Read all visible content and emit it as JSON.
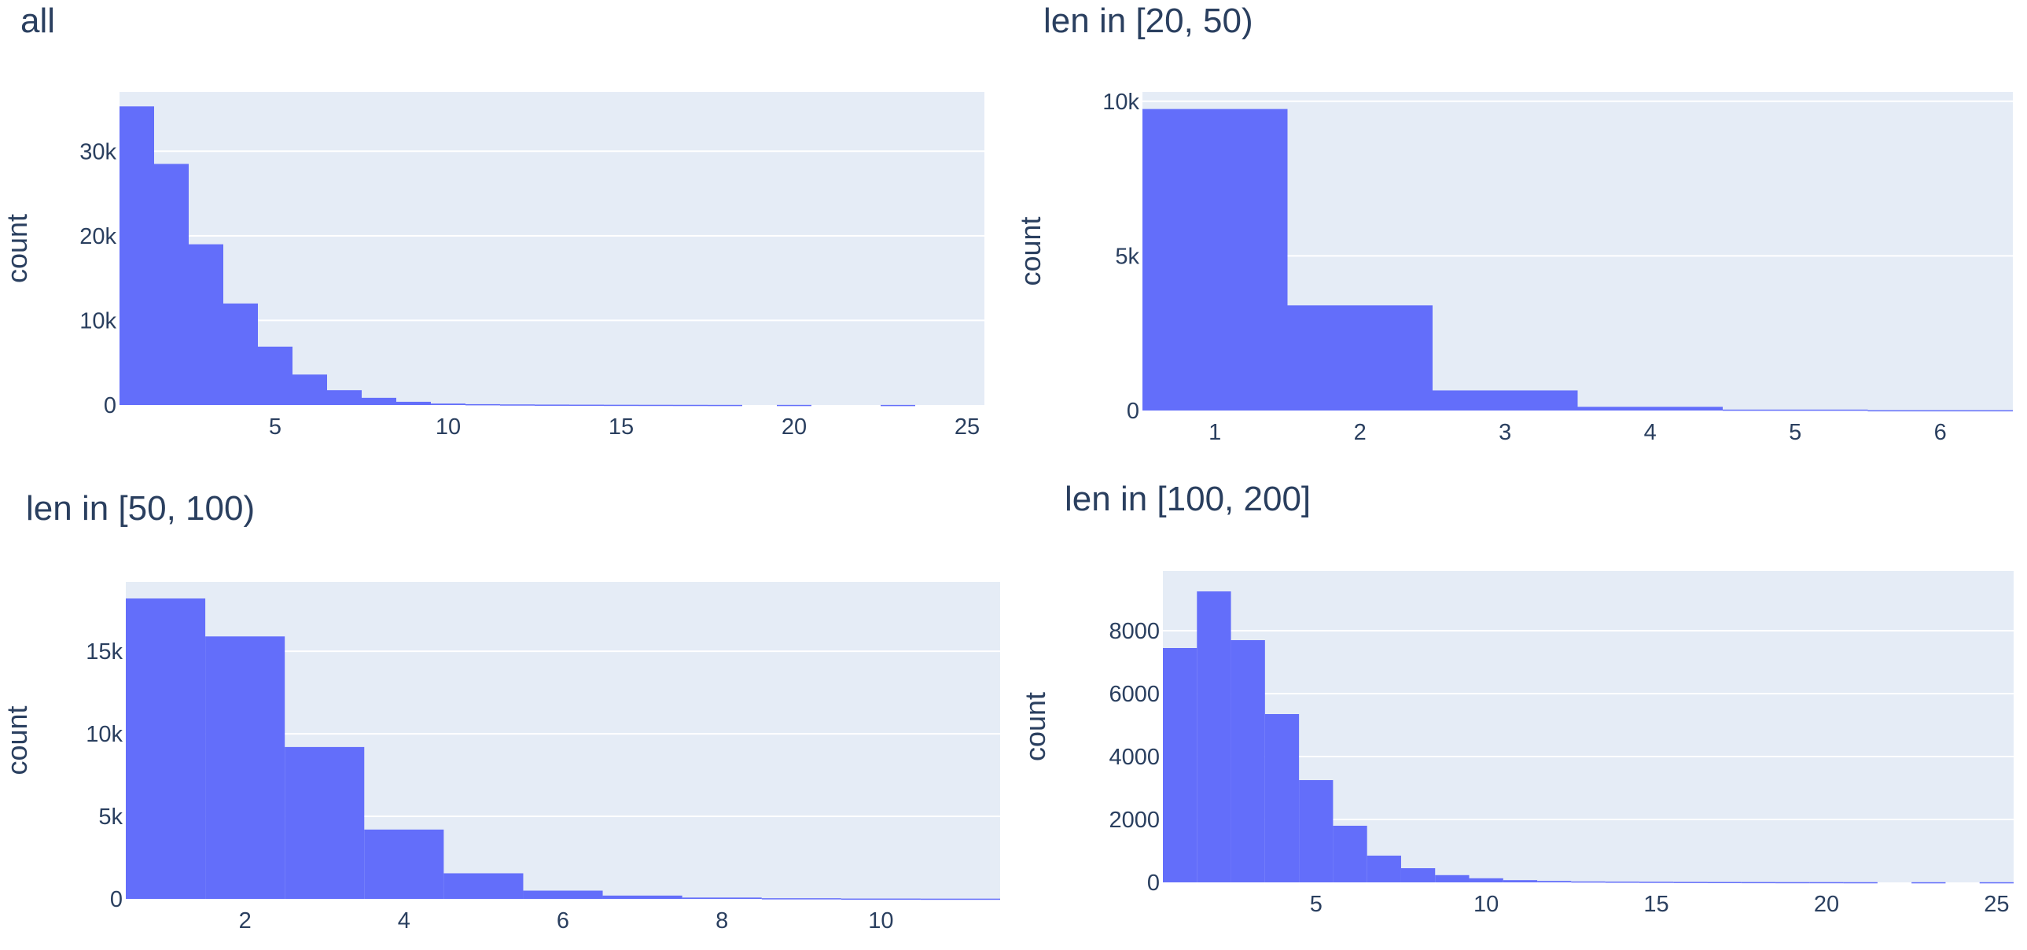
{
  "chart_data": [
    {
      "type": "bar",
      "title": "all",
      "ylabel": "count",
      "xlabel": "",
      "xlim": [
        0.5,
        25.5
      ],
      "ylim": [
        0,
        37000
      ],
      "bin_width": 1,
      "x": [
        1,
        2,
        3,
        4,
        5,
        6,
        7,
        8,
        9,
        10,
        11,
        12,
        13,
        14,
        15,
        16,
        17,
        18,
        19,
        20,
        21,
        22,
        23,
        24,
        25
      ],
      "values": [
        35300,
        28500,
        19000,
        12000,
        6900,
        3600,
        1750,
        850,
        380,
        170,
        100,
        70,
        50,
        40,
        30,
        25,
        20,
        15,
        0,
        15,
        0,
        0,
        10,
        0,
        0
      ],
      "xticks": [
        5,
        10,
        15,
        20,
        25
      ],
      "xtick_labels": [
        "5",
        "10",
        "15",
        "20",
        "25"
      ],
      "yticks": [
        0,
        10000,
        20000,
        30000
      ],
      "ytick_labels": [
        "0",
        "10k",
        "20k",
        "30k"
      ],
      "grid": true,
      "color": "#636efa",
      "background": "#e5ecf6"
    },
    {
      "type": "bar",
      "title": "len in [20, 50)",
      "ylabel": "count",
      "xlabel": "",
      "xlim": [
        0.5,
        6.5
      ],
      "ylim": [
        0,
        10300
      ],
      "bin_width": 1,
      "x": [
        1,
        2,
        3,
        4,
        5,
        6
      ],
      "values": [
        9750,
        3400,
        650,
        120,
        30,
        10
      ],
      "xticks": [
        1,
        2,
        3,
        4,
        5,
        6
      ],
      "xtick_labels": [
        "1",
        "2",
        "3",
        "4",
        "5",
        "6"
      ],
      "yticks": [
        0,
        5000,
        10000
      ],
      "ytick_labels": [
        "0",
        "5k",
        "10k"
      ],
      "grid": true,
      "color": "#636efa",
      "background": "#e5ecf6"
    },
    {
      "type": "bar",
      "title": "len in [50, 100)",
      "ylabel": "count",
      "xlabel": "",
      "xlim": [
        0.5,
        11.5
      ],
      "ylim": [
        0,
        19200
      ],
      "bin_width": 1,
      "x": [
        1,
        2,
        3,
        4,
        5,
        6,
        7,
        8,
        9,
        10,
        11
      ],
      "values": [
        18200,
        15900,
        9200,
        4200,
        1550,
        500,
        200,
        80,
        40,
        20,
        15
      ],
      "xticks": [
        2,
        4,
        6,
        8,
        10
      ],
      "xtick_labels": [
        "2",
        "4",
        "6",
        "8",
        "10"
      ],
      "yticks": [
        0,
        5000,
        10000,
        15000
      ],
      "ytick_labels": [
        "0",
        "5k",
        "10k",
        "15k"
      ],
      "grid": true,
      "color": "#636efa",
      "background": "#e5ecf6"
    },
    {
      "type": "bar",
      "title": "len in [100, 200]",
      "ylabel": "count",
      "xlabel": "",
      "xlim": [
        0.5,
        25.5
      ],
      "ylim": [
        0,
        9900
      ],
      "bin_width": 1,
      "x": [
        1,
        2,
        3,
        4,
        5,
        6,
        7,
        8,
        9,
        10,
        11,
        12,
        13,
        14,
        15,
        16,
        17,
        18,
        19,
        20,
        21,
        22,
        23,
        24,
        25
      ],
      "values": [
        7450,
        9250,
        7700,
        5350,
        3250,
        1800,
        850,
        450,
        230,
        130,
        70,
        45,
        30,
        25,
        20,
        15,
        12,
        10,
        8,
        8,
        6,
        0,
        5,
        0,
        5
      ],
      "xticks": [
        5,
        10,
        15,
        20,
        25
      ],
      "xtick_labels": [
        "5",
        "10",
        "15",
        "20",
        "25"
      ],
      "yticks": [
        0,
        2000,
        4000,
        6000,
        8000
      ],
      "ytick_labels": [
        "0",
        "2000",
        "4000",
        "6000",
        "8000"
      ],
      "grid": true,
      "color": "#636efa",
      "background": "#e5ecf6"
    }
  ]
}
